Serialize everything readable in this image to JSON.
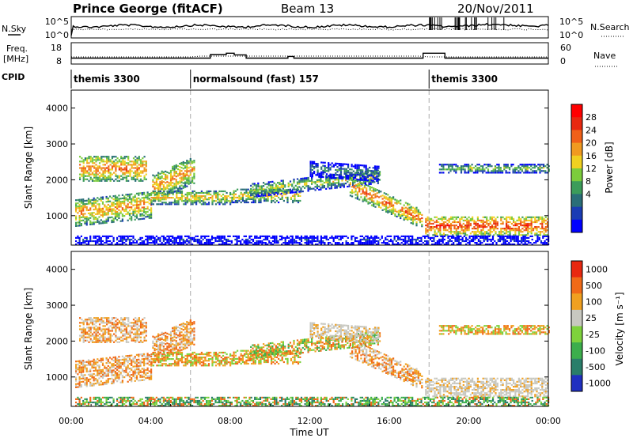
{
  "header": {
    "station": "Prince George (fitACF)",
    "beam": "Beam 13",
    "date": "20/Nov/2011"
  },
  "aux_panels": {
    "nsky_label": "N.Sky",
    "nsearch_label": "N.Search",
    "count_ticks_left": [
      "10^5",
      "10^0"
    ],
    "count_ticks_right": [
      "10^5",
      "10^0"
    ],
    "freq_label_1": "Freq.",
    "freq_label_2": "[MHz]",
    "freq_ticks": [
      "18",
      "8"
    ],
    "nave_label": "Nave",
    "nave_ticks": [
      "60",
      "0"
    ],
    "cpid_label": "CPID",
    "cpid_segments": [
      {
        "label": "themis 3300",
        "start_h": 0,
        "end_h": 6
      },
      {
        "label": "normalsound (fast) 157",
        "start_h": 6,
        "end_h": 18
      },
      {
        "label": "themis 3300",
        "start_h": 18,
        "end_h": 24
      }
    ]
  },
  "chart_data": [
    {
      "type": "heatmap",
      "panel": "power",
      "ylabel": "Slant Range [km]",
      "yticks": [
        "4000",
        "3000",
        "2000",
        "1000"
      ],
      "xlim": [
        0,
        24
      ],
      "ylim": [
        180,
        4500
      ],
      "colorbar": {
        "label": "Power [dB]",
        "ticks": [
          "28",
          "24",
          "20",
          "16",
          "12",
          "8",
          "4"
        ],
        "range": [
          0,
          32
        ],
        "colors": [
          "#0000ff",
          "#1a3cb4",
          "#2a6e78",
          "#3c9c5a",
          "#7ccc3c",
          "#f0d020",
          "#f09a20",
          "#f06018",
          "#e82810",
          "#ff0000"
        ]
      }
    },
    {
      "type": "heatmap",
      "panel": "velocity",
      "ylabel": "Slant Range [km]",
      "yticks": [
        "4000",
        "3000",
        "2000",
        "1000"
      ],
      "xlim": [
        0,
        24
      ],
      "ylim": [
        180,
        4500
      ],
      "colorbar": {
        "label": "Velocity  [m s⁻¹]",
        "ticks": [
          "1000",
          "500",
          "100",
          "25",
          "-25",
          "-100",
          "-500",
          "-1000"
        ],
        "colors": [
          "#2030c0",
          "#2a7e6a",
          "#3cae4c",
          "#7ed23c",
          "#c8c8c0",
          "#f0a020",
          "#f06a18",
          "#e82810"
        ]
      }
    }
  ],
  "xaxis": {
    "label": "Time UT",
    "ticks": [
      "00:00",
      "04:00",
      "08:00",
      "12:00",
      "16:00",
      "20:00",
      "00:00"
    ]
  }
}
